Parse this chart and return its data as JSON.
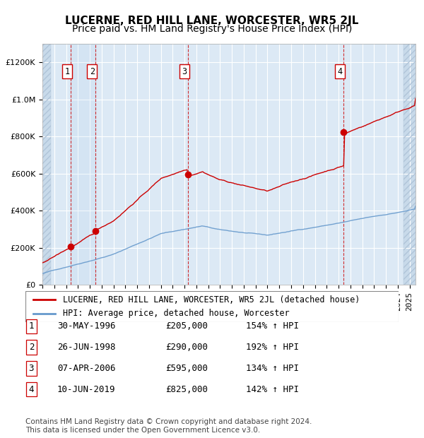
{
  "title": "LUCERNE, RED HILL LANE, WORCESTER, WR5 2JL",
  "subtitle": "Price paid vs. HM Land Registry's House Price Index (HPI)",
  "xlabel": "",
  "ylabel": "",
  "ylim": [
    0,
    1300000
  ],
  "xlim_start": 1994.0,
  "xlim_end": 2025.5,
  "background_color": "#dce9f5",
  "plot_bg_color": "#dce9f5",
  "grid_color": "#ffffff",
  "hatch_color": "#b0c8e0",
  "sale_dates": [
    1996.41,
    1998.49,
    2006.27,
    2019.44
  ],
  "sale_prices": [
    205000,
    290000,
    595000,
    825000
  ],
  "sale_labels": [
    "1",
    "2",
    "3",
    "4"
  ],
  "red_line_color": "#cc0000",
  "blue_line_color": "#6699cc",
  "dashed_line_color": "#cc0000",
  "legend_entries": [
    "LUCERNE, RED HILL LANE, WORCESTER, WR5 2JL (detached house)",
    "HPI: Average price, detached house, Worcester"
  ],
  "table_rows": [
    [
      "1",
      "30-MAY-1996",
      "£205,000",
      "154% ↑ HPI"
    ],
    [
      "2",
      "26-JUN-1998",
      "£290,000",
      "192% ↑ HPI"
    ],
    [
      "3",
      "07-APR-2006",
      "£595,000",
      "134% ↑ HPI"
    ],
    [
      "4",
      "10-JUN-2019",
      "£825,000",
      "142% ↑ HPI"
    ]
  ],
  "footer": "Contains HM Land Registry data © Crown copyright and database right 2024.\nThis data is licensed under the Open Government Licence v3.0.",
  "title_fontsize": 11,
  "subtitle_fontsize": 10,
  "tick_fontsize": 8,
  "legend_fontsize": 8.5,
  "table_fontsize": 9,
  "footer_fontsize": 7.5
}
